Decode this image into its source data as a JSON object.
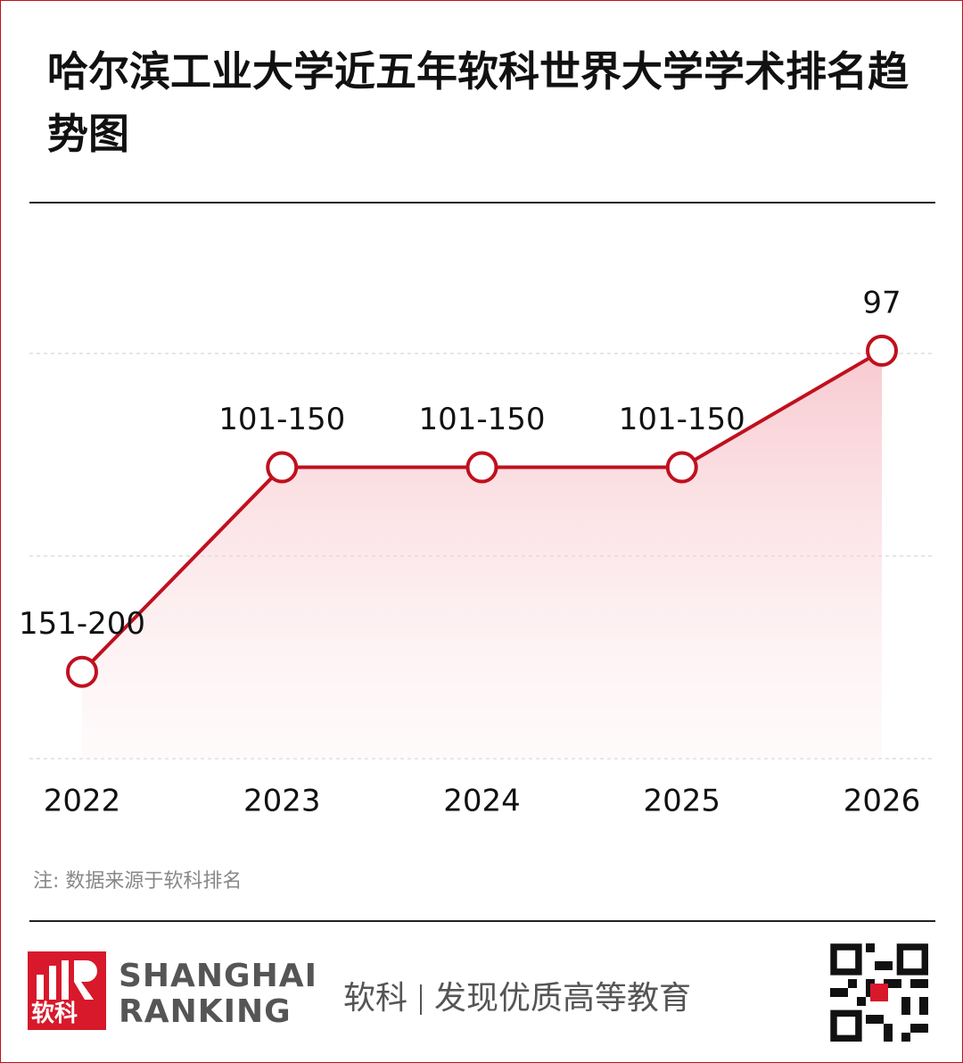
{
  "chart_data": {
    "type": "line",
    "title": "哈尔滨工业大学近五年软科世界大学学术排名趋势图",
    "categories": [
      "2022",
      "2023",
      "2024",
      "2025",
      "2026"
    ],
    "values": [
      175.5,
      125.5,
      125.5,
      125.5,
      97
    ],
    "value_labels": [
      "151-200",
      "101-150",
      "101-150",
      "101-150",
      "97"
    ],
    "color": "#c0101e",
    "ylim": [
      200,
      80
    ],
    "note": "注: 数据来源于软科排名"
  },
  "footer": {
    "logo_cn": "软科",
    "logo_en_1": "SHANGHAI",
    "logo_en_2": "RANKING",
    "brand": "软科",
    "slogan": "发现优质高等教育"
  }
}
